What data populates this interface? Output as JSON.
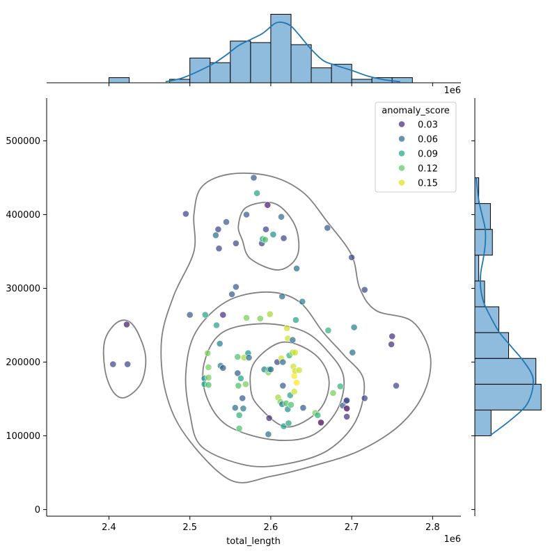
{
  "chart_data": {
    "type": "scatter",
    "subtype": "jointplot",
    "xlabel": "total_length",
    "ylabel": "",
    "x_offset_label": "1e6",
    "xlim": [
      2323000,
      2835000
    ],
    "ylim": [
      -9000,
      558000
    ],
    "x_ticks": [
      2400000,
      2500000,
      2600000,
      2700000,
      2800000
    ],
    "x_tick_labels": [
      "2.4",
      "2.5",
      "2.6",
      "2.7",
      "2.8"
    ],
    "y_ticks": [
      0,
      100000,
      200000,
      300000,
      400000,
      500000
    ],
    "y_tick_labels": [
      "0",
      "100000",
      "200000",
      "300000",
      "400000",
      "500000"
    ],
    "grid": false,
    "legend": {
      "title": "anomaly_score",
      "placement": "top-right",
      "entries": [
        {
          "label": "0.03",
          "color": "#472d7b"
        },
        {
          "label": "0.06",
          "color": "#31688e"
        },
        {
          "label": "0.09",
          "color": "#21a585"
        },
        {
          "label": "0.12",
          "color": "#5ec962"
        },
        {
          "label": "0.15",
          "color": "#dde318"
        }
      ]
    },
    "colormap": [
      "#440154",
      "#472d7b",
      "#3b528b",
      "#2c728e",
      "#21918c",
      "#28ae80",
      "#5ec962",
      "#addc30",
      "#fde725"
    ],
    "score_range": [
      0.02,
      0.16
    ],
    "points": [
      [
        2405000,
        197000,
        0.05
      ],
      [
        2422000,
        251000,
        0.03
      ],
      [
        2423000,
        197000,
        0.05
      ],
      [
        2495000,
        401000,
        0.05
      ],
      [
        2500000,
        264000,
        0.06
      ],
      [
        2518000,
        178000,
        0.09
      ],
      [
        2518000,
        170000,
        0.1
      ],
      [
        2519000,
        264000,
        0.1
      ],
      [
        2522000,
        212000,
        0.13
      ],
      [
        2523000,
        193000,
        0.13
      ],
      [
        2523000,
        179000,
        0.13
      ],
      [
        2523000,
        169000,
        0.12
      ],
      [
        2532000,
        372000,
        0.07
      ],
      [
        2533000,
        250000,
        0.1
      ],
      [
        2535000,
        380000,
        0.05
      ],
      [
        2536000,
        354000,
        0.05
      ],
      [
        2537000,
        225000,
        0.08
      ],
      [
        2538000,
        195000,
        0.08
      ],
      [
        2541000,
        192000,
        0.06
      ],
      [
        2541000,
        264000,
        0.04
      ],
      [
        2545000,
        390000,
        0.06
      ],
      [
        2552000,
        292000,
        0.06
      ],
      [
        2556000,
        138000,
        0.07
      ],
      [
        2557000,
        302000,
        0.06
      ],
      [
        2557000,
        361000,
        0.05
      ],
      [
        2559000,
        185000,
        0.06
      ],
      [
        2559000,
        207000,
        0.12
      ],
      [
        2560000,
        168000,
        0.12
      ],
      [
        2561000,
        128000,
        0.11
      ],
      [
        2561000,
        110000,
        0.12
      ],
      [
        2563000,
        178000,
        0.1
      ],
      [
        2565000,
        151000,
        0.06
      ],
      [
        2566000,
        137000,
        0.08
      ],
      [
        2567000,
        206000,
        0.14
      ],
      [
        2569000,
        170000,
        0.13
      ],
      [
        2570000,
        260000,
        0.13
      ],
      [
        2570000,
        400000,
        0.06
      ],
      [
        2572000,
        212000,
        0.09
      ],
      [
        2573000,
        206000,
        0.07
      ],
      [
        2579000,
        450000,
        0.06
      ],
      [
        2583000,
        429000,
        0.1
      ],
      [
        2587000,
        259000,
        0.13
      ],
      [
        2589000,
        361000,
        0.05
      ],
      [
        2590000,
        367000,
        0.1
      ],
      [
        2592000,
        190000,
        0.08
      ],
      [
        2593000,
        366000,
        0.12
      ],
      [
        2594000,
        380000,
        0.05
      ],
      [
        2596000,
        413000,
        0.03
      ],
      [
        2597000,
        186000,
        0.13
      ],
      [
        2597000,
        102000,
        0.07
      ],
      [
        2598000,
        124000,
        0.04
      ],
      [
        2598000,
        190000,
        0.1
      ],
      [
        2599000,
        265000,
        0.14
      ],
      [
        2600000,
        190000,
        0.07
      ],
      [
        2603000,
        373000,
        0.09
      ],
      [
        2608000,
        200000,
        0.05
      ],
      [
        2609000,
        152000,
        0.14
      ],
      [
        2612000,
        146000,
        0.13
      ],
      [
        2613000,
        397000,
        0.07
      ],
      [
        2613000,
        205000,
        0.15
      ],
      [
        2614000,
        143000,
        0.08
      ],
      [
        2614000,
        289000,
        0.07
      ],
      [
        2615000,
        200000,
        0.07
      ],
      [
        2615000,
        168000,
        0.06
      ],
      [
        2616000,
        113000,
        0.1
      ],
      [
        2616000,
        368000,
        0.05
      ],
      [
        2619000,
        144000,
        0.12
      ],
      [
        2620000,
        246000,
        0.15
      ],
      [
        2621000,
        232000,
        0.15
      ],
      [
        2621000,
        136000,
        0.09
      ],
      [
        2622000,
        117000,
        0.1
      ],
      [
        2623000,
        209000,
        0.11
      ],
      [
        2624000,
        155000,
        0.1
      ],
      [
        2625000,
        142000,
        0.12
      ],
      [
        2627000,
        230000,
        0.07
      ],
      [
        2627000,
        213000,
        0.14
      ],
      [
        2628000,
        194000,
        0.15
      ],
      [
        2629000,
        160000,
        0.15
      ],
      [
        2629000,
        181000,
        0.16
      ],
      [
        2630000,
        188000,
        0.15
      ],
      [
        2630000,
        213000,
        0.15
      ],
      [
        2631000,
        257000,
        0.1
      ],
      [
        2632000,
        172000,
        0.16
      ],
      [
        2632000,
        327000,
        0.07
      ],
      [
        2635000,
        189000,
        0.15
      ],
      [
        2639000,
        282000,
        0.08
      ],
      [
        2640000,
        138000,
        0.06
      ],
      [
        2655000,
        131000,
        0.13
      ],
      [
        2658000,
        128000,
        0.11
      ],
      [
        2662000,
        118000,
        0.01
      ],
      [
        2670000,
        382000,
        0.06
      ],
      [
        2671000,
        243000,
        0.11
      ],
      [
        2677000,
        158000,
        0.13
      ],
      [
        2686000,
        167000,
        0.11
      ],
      [
        2689000,
        141000,
        0.06
      ],
      [
        2693000,
        147000,
        0.05
      ],
      [
        2694000,
        126000,
        0.04
      ],
      [
        2694000,
        137000,
        0.02
      ],
      [
        2694000,
        148000,
        0.05
      ],
      [
        2700000,
        342000,
        0.05
      ],
      [
        2701000,
        213000,
        0.07
      ],
      [
        2703000,
        247000,
        0.08
      ],
      [
        2716000,
        298000,
        0.05
      ],
      [
        2716000,
        151000,
        0.05
      ],
      [
        2749000,
        224000,
        0.04
      ],
      [
        2750000,
        235000,
        0.04
      ],
      [
        2755000,
        168000,
        0.05
      ]
    ],
    "marginal_x": {
      "bins": [
        [
          2400000,
          2425000,
          1
        ],
        [
          2425000,
          2450000,
          0
        ],
        [
          2450000,
          2475000,
          0
        ],
        [
          2475000,
          2500000,
          0.67
        ],
        [
          2500000,
          2525000,
          4.8
        ],
        [
          2525000,
          2550000,
          3.9
        ],
        [
          2550000,
          2575000,
          8.1
        ],
        [
          2575000,
          2600000,
          7.8
        ],
        [
          2600000,
          2625000,
          13.3
        ],
        [
          2625000,
          2650000,
          7.4
        ],
        [
          2650000,
          2675000,
          2.9
        ],
        [
          2675000,
          2700000,
          3.6
        ],
        [
          2700000,
          2725000,
          0.67
        ],
        [
          2725000,
          2750000,
          1
        ],
        [
          2750000,
          2775000,
          1
        ]
      ],
      "max": 13.5,
      "kde": [
        [
          2470000,
          0.2
        ],
        [
          2490000,
          0.9
        ],
        [
          2510000,
          2.2
        ],
        [
          2530000,
          3.8
        ],
        [
          2545000,
          5.4
        ],
        [
          2560000,
          7.2
        ],
        [
          2575000,
          8.4
        ],
        [
          2590000,
          9.6
        ],
        [
          2605000,
          11.5
        ],
        [
          2615000,
          11.7
        ],
        [
          2625000,
          11.0
        ],
        [
          2635000,
          9.3
        ],
        [
          2650000,
          6.5
        ],
        [
          2665000,
          4.3
        ],
        [
          2680000,
          3.4
        ],
        [
          2700000,
          2.4
        ],
        [
          2720000,
          1.3
        ],
        [
          2740000,
          0.6
        ],
        [
          2760000,
          0.2
        ]
      ]
    },
    "marginal_y": {
      "bins": [
        [
          100000,
          135000,
          2.5
        ],
        [
          135000,
          170000,
          10.2
        ],
        [
          170000,
          205000,
          9.4
        ],
        [
          205000,
          240000,
          5.2
        ],
        [
          240000,
          275000,
          3.7
        ],
        [
          275000,
          310000,
          1.5
        ],
        [
          310000,
          345000,
          0.6
        ],
        [
          345000,
          380000,
          2.7
        ],
        [
          380000,
          415000,
          2.4
        ],
        [
          415000,
          450000,
          0.6
        ]
      ],
      "max": 10.5,
      "kde": [
        [
          100000,
          2.3
        ],
        [
          120000,
          5.3
        ],
        [
          140000,
          7.8
        ],
        [
          160000,
          8.8
        ],
        [
          180000,
          8.9
        ],
        [
          200000,
          7.6
        ],
        [
          220000,
          5.7
        ],
        [
          240000,
          3.8
        ],
        [
          260000,
          2.5
        ],
        [
          280000,
          1.4
        ],
        [
          300000,
          0.9
        ],
        [
          320000,
          0.9
        ],
        [
          340000,
          1.3
        ],
        [
          360000,
          1.6
        ],
        [
          380000,
          1.6
        ],
        [
          400000,
          1.1
        ],
        [
          420000,
          0.6
        ],
        [
          450000,
          0.2
        ]
      ]
    },
    "kde_contours": [
      [
        [
          2550000,
          40000
        ],
        [
          2600000,
          45000
        ],
        [
          2655000,
          60000
        ],
        [
          2710000,
          80000
        ],
        [
          2760000,
          115000
        ],
        [
          2790000,
          160000
        ],
        [
          2797000,
          210000
        ],
        [
          2775000,
          255000
        ],
        [
          2730000,
          270000
        ],
        [
          2710000,
          300000
        ],
        [
          2700000,
          345000
        ],
        [
          2670000,
          390000
        ],
        [
          2640000,
          430000
        ],
        [
          2600000,
          452000
        ],
        [
          2550000,
          455000
        ],
        [
          2515000,
          438000
        ],
        [
          2505000,
          400000
        ],
        [
          2505000,
          350000
        ],
        [
          2480000,
          290000
        ],
        [
          2465000,
          230000
        ],
        [
          2470000,
          160000
        ],
        [
          2495000,
          100000
        ]
      ],
      [
        [
          2515000,
          85000
        ],
        [
          2570000,
          60000
        ],
        [
          2620000,
          62000
        ],
        [
          2670000,
          80000
        ],
        [
          2705000,
          120000
        ],
        [
          2715000,
          175000
        ],
        [
          2690000,
          210000
        ],
        [
          2665000,
          240000
        ],
        [
          2635000,
          282000
        ],
        [
          2595000,
          295000
        ],
        [
          2545000,
          282000
        ],
        [
          2507000,
          240000
        ],
        [
          2495000,
          185000
        ],
        [
          2500000,
          130000
        ]
      ],
      [
        [
          2545000,
          115000
        ],
        [
          2600000,
          95000
        ],
        [
          2650000,
          100000
        ],
        [
          2682000,
          135000
        ],
        [
          2690000,
          180000
        ],
        [
          2670000,
          215000
        ],
        [
          2640000,
          242000
        ],
        [
          2590000,
          252000
        ],
        [
          2540000,
          240000
        ],
        [
          2518000,
          200000
        ],
        [
          2520000,
          155000
        ]
      ],
      [
        [
          2585000,
          140000
        ],
        [
          2620000,
          112000
        ],
        [
          2660000,
          135000
        ],
        [
          2672000,
          175000
        ],
        [
          2655000,
          210000
        ],
        [
          2615000,
          227000
        ],
        [
          2580000,
          200000
        ],
        [
          2575000,
          165000
        ]
      ],
      [
        [
          2565000,
          365000
        ],
        [
          2575000,
          340000
        ],
        [
          2610000,
          325000
        ],
        [
          2633000,
          345000
        ],
        [
          2630000,
          385000
        ],
        [
          2605000,
          415000
        ],
        [
          2570000,
          410000
        ],
        [
          2560000,
          385000
        ]
      ],
      [
        [
          2420000,
          152000
        ],
        [
          2440000,
          172000
        ],
        [
          2445000,
          210000
        ],
        [
          2430000,
          250000
        ],
        [
          2412000,
          255000
        ],
        [
          2395000,
          230000
        ],
        [
          2395000,
          190000
        ],
        [
          2405000,
          160000
        ]
      ]
    ]
  }
}
